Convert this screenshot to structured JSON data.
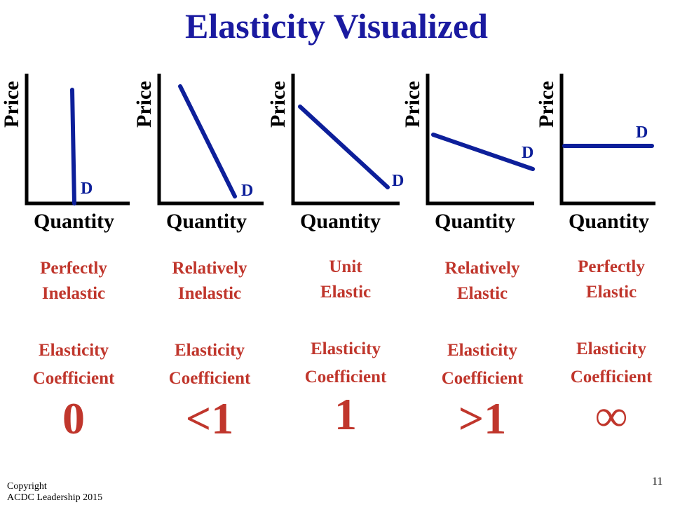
{
  "slide": {
    "title": "Elasticity Visualized",
    "copyright_line1": "Copyright",
    "copyright_line2": "ACDC Leadership 2015",
    "page_number": "11"
  },
  "colors": {
    "title": "#1a1aa0",
    "curve": "#0d1f9a",
    "caption": "#c0362c",
    "axis": "#000000"
  },
  "graphs": [
    {
      "y_label": "Price",
      "x_label": "Quantity",
      "curve_label": "D",
      "name_line1": "Perfectly",
      "name_line2": "Inelastic",
      "coef_line1": "Elasticity",
      "coef_line2": "Coefficient",
      "coef_value": "0"
    },
    {
      "y_label": "Price",
      "x_label": "Quantity",
      "curve_label": "D",
      "name_line1": "Relatively",
      "name_line2": "Inelastic",
      "coef_line1": "Elasticity",
      "coef_line2": "Coefficient",
      "coef_value": "<1"
    },
    {
      "y_label": "Price",
      "x_label": "Quantity",
      "curve_label": "D",
      "name_line1": "Unit",
      "name_line2": "Elastic",
      "coef_line1": "Elasticity",
      "coef_line2": "Coefficient",
      "coef_value": "1"
    },
    {
      "y_label": "Price",
      "x_label": "Quantity",
      "curve_label": "D",
      "name_line1": "Relatively",
      "name_line2": "Elastic",
      "coef_line1": "Elasticity",
      "coef_line2": "Coefficient",
      "coef_value": ">1"
    },
    {
      "y_label": "Price",
      "x_label": "Quantity",
      "curve_label": "D",
      "name_line1": "Perfectly",
      "name_line2": "Elastic",
      "coef_line1": "Elasticity",
      "coef_line2": "Coefficient",
      "coef_value": "∞"
    }
  ]
}
